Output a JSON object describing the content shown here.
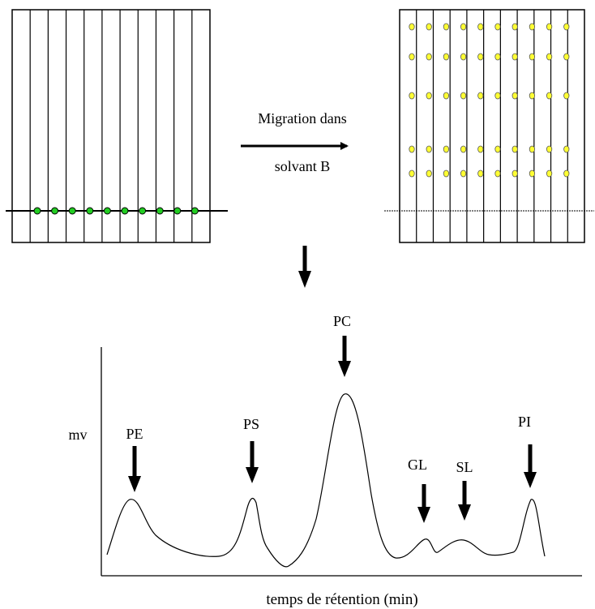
{
  "migration": {
    "line1": "Migration dans",
    "line2": "solvant B"
  },
  "colors": {
    "sample_spot": "#22cc22",
    "separated_spot": "#ffff33",
    "ink": "#000000"
  },
  "plate_left": {
    "lanes": 11,
    "spots_on_origin": 10
  },
  "plate_right": {
    "lanes": 11,
    "spot_rows": 5,
    "spots_per_row": 10
  },
  "chromatogram": {
    "y_label": "mv",
    "x_label": "temps de rétention (min)",
    "peaks": [
      {
        "label": "PE"
      },
      {
        "label": "PS"
      },
      {
        "label": "PC"
      },
      {
        "label": "GL"
      },
      {
        "label": "SL"
      },
      {
        "label": "PI"
      }
    ]
  }
}
